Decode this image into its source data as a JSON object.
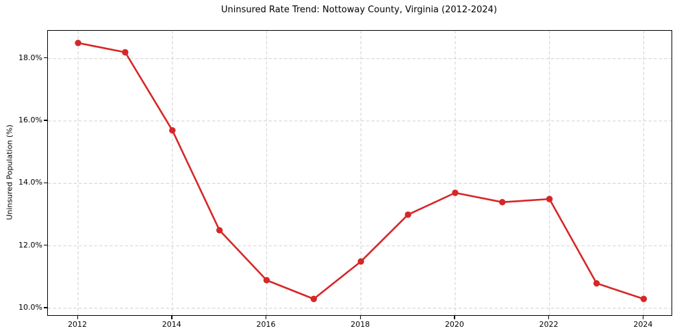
{
  "chart_data": {
    "type": "line",
    "title": "Uninsured Rate Trend: Nottoway County, Virginia (2012-2024)",
    "xlabel": "",
    "ylabel": "Uninsured Population (%)",
    "x": [
      2012,
      2013,
      2014,
      2015,
      2016,
      2017,
      2018,
      2019,
      2020,
      2021,
      2022,
      2023,
      2024
    ],
    "y": [
      18.5,
      18.2,
      15.7,
      12.5,
      10.9,
      10.3,
      11.5,
      13.0,
      13.7,
      13.4,
      13.5,
      10.8,
      10.3
    ],
    "series_name": "Uninsured Rate",
    "xlim": [
      2011.36,
      2024.59
    ],
    "ylim": [
      9.78,
      18.89
    ],
    "x_ticks": [
      2012,
      2014,
      2016,
      2018,
      2020,
      2022,
      2024
    ],
    "x_tick_labels": [
      "2012",
      "2014",
      "2016",
      "2018",
      "2020",
      "2022",
      "2024"
    ],
    "y_ticks": [
      10,
      12,
      14,
      16,
      18
    ],
    "y_tick_labels": [
      "10.0%",
      "12.0%",
      "14.0%",
      "16.0%",
      "18.0%"
    ],
    "grid": true,
    "grid_style": "dashed",
    "legend": false,
    "marker": "circle",
    "line_color": "#d62728",
    "marker_color": "#d62728",
    "grid_color": "#d4d4d4",
    "spine_color": "#000000",
    "tick_color": "#000000",
    "background": "#ffffff"
  }
}
